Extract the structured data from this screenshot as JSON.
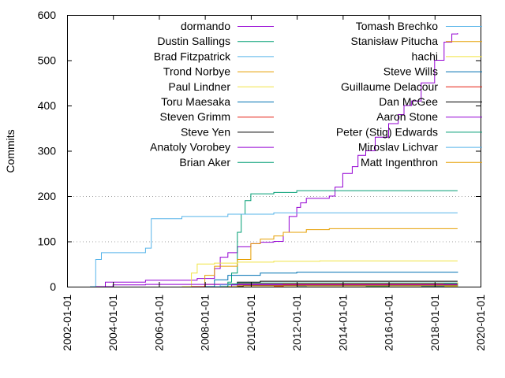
{
  "chart_data": {
    "type": "line",
    "title": "",
    "xlabel": "",
    "ylabel": "Commits",
    "xlim": [
      "2002-01-01",
      "2020-01-01"
    ],
    "ylim": [
      0,
      600
    ],
    "x_ticks": [
      "2002-01-01",
      "2004-01-01",
      "2006-01-01",
      "2008-01-01",
      "2010-01-01",
      "2012-01-01",
      "2014-01-01",
      "2016-01-01",
      "2018-01-01",
      "2020-01-01"
    ],
    "y_ticks": [
      0,
      100,
      200,
      300,
      400,
      500,
      600
    ],
    "grid": "horizontal dotted at 100 and 200",
    "legend_placement": "top, two columns",
    "series": [
      {
        "name": "dormando",
        "color": "#9400d3",
        "points": [
          [
            "2003-02-01",
            0
          ],
          [
            "2003-09-01",
            10
          ],
          [
            "2005-06-01",
            14
          ],
          [
            "2007-09-01",
            18
          ],
          [
            "2008-06-01",
            40
          ],
          [
            "2008-09-01",
            65
          ],
          [
            "2009-01-01",
            75
          ],
          [
            "2009-06-01",
            88
          ],
          [
            "2010-01-01",
            95
          ],
          [
            "2010-06-01",
            98
          ],
          [
            "2011-01-01",
            100
          ],
          [
            "2011-06-01",
            120
          ],
          [
            "2011-09-01",
            155
          ],
          [
            "2012-01-01",
            175
          ],
          [
            "2012-03-01",
            185
          ],
          [
            "2012-06-01",
            195
          ],
          [
            "2013-06-01",
            200
          ],
          [
            "2013-09-01",
            220
          ],
          [
            "2014-01-01",
            250
          ],
          [
            "2014-06-01",
            265
          ],
          [
            "2014-09-01",
            290
          ],
          [
            "2015-01-01",
            300
          ],
          [
            "2015-06-01",
            330
          ],
          [
            "2016-01-01",
            360
          ],
          [
            "2016-06-01",
            380
          ],
          [
            "2016-09-01",
            400
          ],
          [
            "2017-01-01",
            410
          ],
          [
            "2017-06-01",
            450
          ],
          [
            "2018-01-01",
            500
          ],
          [
            "2018-06-01",
            540
          ],
          [
            "2018-10-01",
            558
          ],
          [
            "2019-01-01",
            560
          ]
        ]
      },
      {
        "name": "Dustin Sallings",
        "color": "#009e73",
        "points": [
          [
            "2008-01-01",
            0
          ],
          [
            "2009-01-01",
            10
          ],
          [
            "2009-03-01",
            30
          ],
          [
            "2009-06-01",
            120
          ],
          [
            "2009-08-01",
            160
          ],
          [
            "2009-10-01",
            190
          ],
          [
            "2010-01-01",
            205
          ],
          [
            "2011-01-01",
            208
          ],
          [
            "2012-01-01",
            212
          ],
          [
            "2019-01-01",
            212
          ]
        ]
      },
      {
        "name": "Brad Fitzpatrick",
        "color": "#56b4e9",
        "points": [
          [
            "2003-01-01",
            0
          ],
          [
            "2003-04-01",
            60
          ],
          [
            "2003-07-01",
            75
          ],
          [
            "2005-06-01",
            85
          ],
          [
            "2005-09-01",
            150
          ],
          [
            "2007-01-01",
            155
          ],
          [
            "2009-01-01",
            160
          ],
          [
            "2011-01-01",
            163
          ],
          [
            "2019-01-01",
            163
          ]
        ]
      },
      {
        "name": "Trond Norbye",
        "color": "#e69f00",
        "points": [
          [
            "2007-03-01",
            0
          ],
          [
            "2008-01-01",
            25
          ],
          [
            "2008-06-01",
            45
          ],
          [
            "2009-06-01",
            60
          ],
          [
            "2010-01-01",
            95
          ],
          [
            "2010-06-01",
            105
          ],
          [
            "2011-01-01",
            112
          ],
          [
            "2011-06-01",
            120
          ],
          [
            "2012-06-01",
            126
          ],
          [
            "2013-06-01",
            128
          ],
          [
            "2019-01-01",
            128
          ]
        ]
      },
      {
        "name": "Paul Lindner",
        "color": "#f0e442",
        "points": [
          [
            "2007-01-01",
            0
          ],
          [
            "2007-06-01",
            30
          ],
          [
            "2007-09-01",
            50
          ],
          [
            "2008-06-01",
            52
          ],
          [
            "2009-06-01",
            54
          ],
          [
            "2011-01-01",
            56
          ],
          [
            "2013-01-01",
            57
          ],
          [
            "2019-01-01",
            57
          ]
        ]
      },
      {
        "name": "Toru Maesaka",
        "color": "#0072b2",
        "points": [
          [
            "2008-01-01",
            0
          ],
          [
            "2008-06-01",
            15
          ],
          [
            "2009-01-01",
            25
          ],
          [
            "2010-06-01",
            30
          ],
          [
            "2012-01-01",
            32
          ],
          [
            "2019-01-01",
            33
          ]
        ]
      },
      {
        "name": "Steven Grimm",
        "color": "#e51e10",
        "points": [
          [
            "2007-06-01",
            0
          ],
          [
            "2008-01-01",
            5
          ],
          [
            "2009-01-01",
            6
          ],
          [
            "2019-01-01",
            6
          ]
        ]
      },
      {
        "name": "Steve Yen",
        "color": "#000000",
        "points": [
          [
            "2009-01-01",
            0
          ],
          [
            "2009-06-01",
            10
          ],
          [
            "2010-06-01",
            12
          ],
          [
            "2019-01-01",
            12
          ]
        ]
      },
      {
        "name": "Anatoly Vorobey",
        "color": "#9400d3",
        "points": [
          [
            "2003-06-01",
            0
          ],
          [
            "2004-01-01",
            4
          ],
          [
            "2005-06-01",
            5
          ],
          [
            "2019-01-01",
            5
          ]
        ]
      },
      {
        "name": "Brian Aker",
        "color": "#009e73",
        "points": [
          [
            "2008-09-01",
            0
          ],
          [
            "2009-01-01",
            6
          ],
          [
            "2009-06-01",
            8
          ],
          [
            "2019-01-01",
            8
          ]
        ]
      },
      {
        "name": "Tomash Brechko",
        "color": "#56b4e9",
        "points": [
          [
            "2008-06-01",
            0
          ],
          [
            "2008-09-01",
            4
          ],
          [
            "2019-01-01",
            4
          ]
        ]
      },
      {
        "name": "Stanisław Pitucha",
        "color": "#e69f00",
        "points": [
          [
            "2018-06-01",
            0
          ],
          [
            "2018-09-01",
            5
          ],
          [
            "2019-01-01",
            8
          ]
        ]
      },
      {
        "name": "hachi",
        "color": "#f0e442",
        "points": [
          [
            "2018-06-01",
            0
          ],
          [
            "2019-01-01",
            10
          ]
        ]
      },
      {
        "name": "Steve Wills",
        "color": "#0072b2",
        "points": [
          [
            "2017-06-01",
            0
          ],
          [
            "2018-06-01",
            6
          ],
          [
            "2019-01-01",
            7
          ]
        ]
      },
      {
        "name": "Guillaume Delacour",
        "color": "#e51e10",
        "points": [
          [
            "2011-01-01",
            0
          ],
          [
            "2011-06-01",
            5
          ],
          [
            "2019-01-01",
            5
          ]
        ]
      },
      {
        "name": "Dan McGee",
        "color": "#000000",
        "points": [
          [
            "2009-06-01",
            0
          ],
          [
            "2009-09-01",
            3
          ],
          [
            "2019-01-01",
            3
          ]
        ]
      },
      {
        "name": "Aaron Stone",
        "color": "#9400d3",
        "points": [
          [
            "2009-01-01",
            0
          ],
          [
            "2009-03-01",
            4
          ],
          [
            "2019-01-01",
            4
          ]
        ]
      },
      {
        "name": "Peter (Stig) Edwards",
        "color": "#009e73",
        "points": [
          [
            "2015-01-01",
            0
          ],
          [
            "2016-01-01",
            2
          ],
          [
            "2019-01-01",
            3
          ]
        ]
      },
      {
        "name": "Miroslav Lichvar",
        "color": "#56b4e9",
        "points": [
          [
            "2012-01-01",
            0
          ],
          [
            "2012-06-01",
            2
          ],
          [
            "2019-01-01",
            2
          ]
        ]
      },
      {
        "name": "Matt Ingenthron",
        "color": "#e69f00",
        "points": [
          [
            "2009-01-01",
            0
          ],
          [
            "2009-06-01",
            2
          ],
          [
            "2019-01-01",
            2
          ]
        ]
      }
    ]
  }
}
